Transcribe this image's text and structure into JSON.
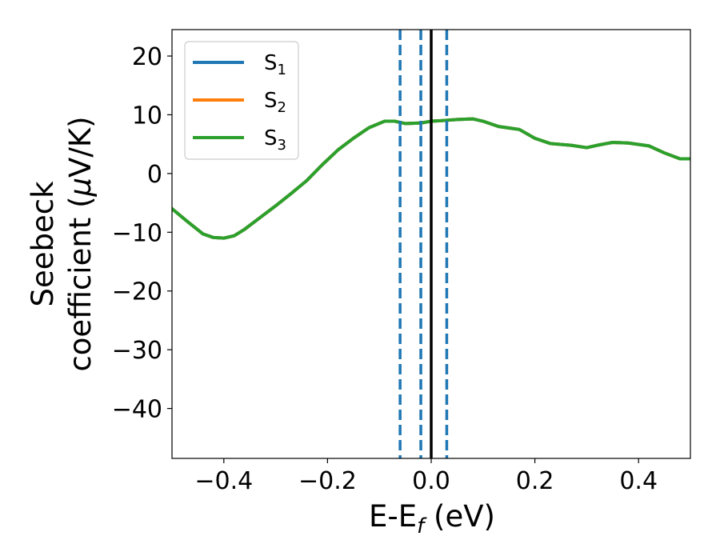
{
  "chart_data": {
    "type": "line",
    "title": "",
    "xlabel": {
      "base": "E-E",
      "sub": "f",
      "tail": " (eV)"
    },
    "ylabel": {
      "line1": "Seebeck",
      "line2_prefix": "coefficient  (",
      "mu": "μ",
      "line2_suffix": "V/K)"
    },
    "xlim": [
      -0.5,
      0.5
    ],
    "ylim": [
      -48.5,
      24.5
    ],
    "xticks": [
      {
        "value": -0.4,
        "label": "−0.4"
      },
      {
        "value": -0.2,
        "label": "−0.2"
      },
      {
        "value": 0.0,
        "label": "0.0"
      },
      {
        "value": 0.2,
        "label": "0.2"
      },
      {
        "value": 0.4,
        "label": "0.4"
      }
    ],
    "yticks": [
      {
        "value": 20,
        "label": "20"
      },
      {
        "value": 10,
        "label": "10"
      },
      {
        "value": 0,
        "label": "0"
      },
      {
        "value": -10,
        "label": "−10"
      },
      {
        "value": -20,
        "label": "−20"
      },
      {
        "value": -30,
        "label": "−30"
      },
      {
        "value": -40,
        "label": "−40"
      }
    ],
    "grid": false,
    "legend_position": "top-left",
    "series": [
      {
        "name": "S",
        "sub": "1",
        "color": "#1f77b4",
        "x": [
          -0.5,
          -0.47,
          -0.44,
          -0.42,
          -0.4,
          -0.38,
          -0.36,
          -0.33,
          -0.3,
          -0.27,
          -0.24,
          -0.21,
          -0.18,
          -0.15,
          -0.12,
          -0.09,
          -0.07,
          -0.05,
          -0.02,
          0.0,
          0.02,
          0.05,
          0.08,
          0.1,
          0.13,
          0.17,
          0.2,
          0.23,
          0.27,
          0.3,
          0.32,
          0.35,
          0.38,
          0.42,
          0.45,
          0.48,
          0.5
        ],
        "y": [
          -6.0,
          -8.2,
          -10.3,
          -10.9,
          -11.0,
          -10.6,
          -9.5,
          -7.5,
          -5.5,
          -3.4,
          -1.2,
          1.5,
          4.0,
          6.0,
          7.8,
          8.9,
          8.9,
          8.5,
          8.6,
          8.9,
          9.0,
          9.2,
          9.3,
          8.9,
          8.0,
          7.5,
          6.0,
          5.1,
          4.8,
          4.4,
          4.8,
          5.3,
          5.2,
          4.7,
          3.5,
          2.5,
          2.5
        ]
      },
      {
        "name": "S",
        "sub": "2",
        "color": "#ff7f0e",
        "x": [
          -0.5,
          -0.47,
          -0.44,
          -0.42,
          -0.4,
          -0.38,
          -0.36,
          -0.33,
          -0.3,
          -0.27,
          -0.24,
          -0.21,
          -0.18,
          -0.15,
          -0.12,
          -0.09,
          -0.07,
          -0.05,
          -0.02,
          0.0,
          0.02,
          0.05,
          0.08,
          0.1,
          0.13,
          0.17,
          0.2,
          0.23,
          0.27,
          0.3,
          0.32,
          0.35,
          0.38,
          0.42,
          0.45,
          0.48,
          0.5
        ],
        "y": [
          -6.0,
          -8.2,
          -10.3,
          -10.9,
          -11.0,
          -10.6,
          -9.5,
          -7.5,
          -5.5,
          -3.4,
          -1.2,
          1.5,
          4.0,
          6.0,
          7.8,
          8.9,
          8.9,
          8.5,
          8.6,
          8.9,
          9.0,
          9.2,
          9.3,
          8.9,
          8.0,
          7.5,
          6.0,
          5.1,
          4.8,
          4.4,
          4.8,
          5.3,
          5.2,
          4.7,
          3.5,
          2.5,
          2.5
        ]
      },
      {
        "name": "S",
        "sub": "3",
        "color": "#2ca02c",
        "x": [
          -0.5,
          -0.47,
          -0.44,
          -0.42,
          -0.4,
          -0.38,
          -0.36,
          -0.33,
          -0.3,
          -0.27,
          -0.24,
          -0.21,
          -0.18,
          -0.15,
          -0.12,
          -0.09,
          -0.07,
          -0.05,
          -0.02,
          0.0,
          0.02,
          0.05,
          0.08,
          0.1,
          0.13,
          0.17,
          0.2,
          0.23,
          0.27,
          0.3,
          0.32,
          0.35,
          0.38,
          0.42,
          0.45,
          0.48,
          0.5
        ],
        "y": [
          -6.0,
          -8.2,
          -10.3,
          -10.9,
          -11.0,
          -10.6,
          -9.5,
          -7.5,
          -5.5,
          -3.4,
          -1.2,
          1.5,
          4.0,
          6.0,
          7.8,
          8.9,
          8.9,
          8.5,
          8.6,
          8.9,
          9.0,
          9.2,
          9.3,
          8.9,
          8.0,
          7.5,
          6.0,
          5.1,
          4.8,
          4.4,
          4.8,
          5.3,
          5.2,
          4.7,
          3.5,
          2.5,
          2.5
        ]
      }
    ],
    "vlines": [
      {
        "x": -0.06,
        "color": "#1f77b4",
        "style": "dashed"
      },
      {
        "x": -0.02,
        "color": "#1f77b4",
        "style": "dashed"
      },
      {
        "x": 0.0,
        "color": "#000000",
        "style": "solid"
      },
      {
        "x": 0.03,
        "color": "#1f77b4",
        "style": "dashed"
      }
    ]
  }
}
